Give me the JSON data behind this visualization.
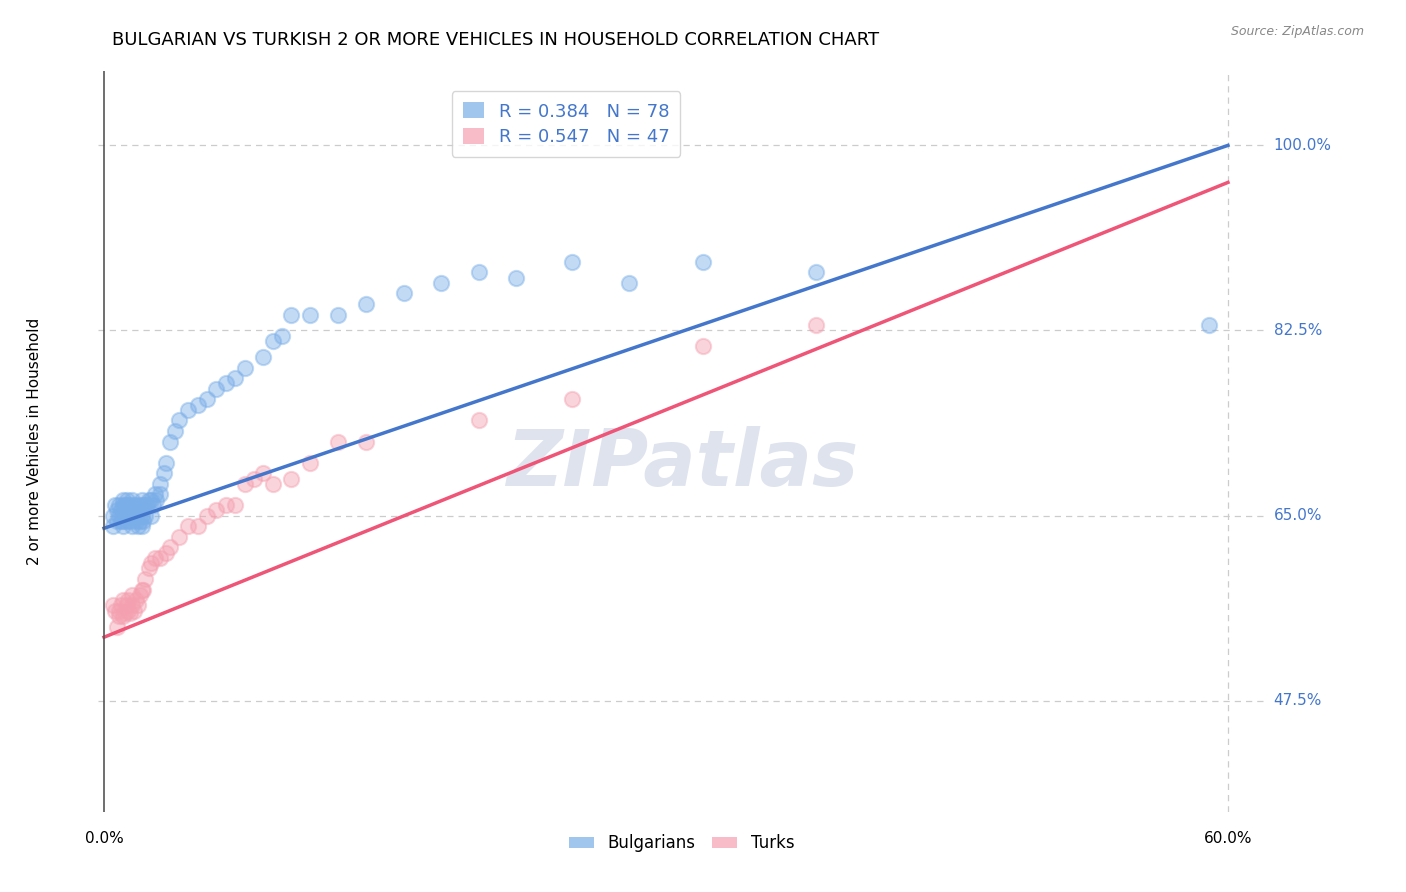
{
  "title": "BULGARIAN VS TURKISH 2 OR MORE VEHICLES IN HOUSEHOLD CORRELATION CHART",
  "source_text": "Source: ZipAtlas.com",
  "ylabel": "2 or more Vehicles in Household",
  "ytick_labels": [
    "47.5%",
    "65.0%",
    "82.5%",
    "100.0%"
  ],
  "ytick_values": [
    0.475,
    0.65,
    0.825,
    1.0
  ],
  "xtick_labels": [
    "0.0%",
    "60.0%"
  ],
  "xtick_values": [
    0.0,
    0.6
  ],
  "xlim": [
    -0.003,
    0.62
  ],
  "ylim": [
    0.37,
    1.07
  ],
  "legend_r_entries": [
    {
      "label": "R = 0.384   N = 78"
    },
    {
      "label": "R = 0.547   N = 47"
    }
  ],
  "blue_scatter_x": [
    0.005,
    0.005,
    0.006,
    0.007,
    0.007,
    0.008,
    0.008,
    0.009,
    0.009,
    0.01,
    0.01,
    0.01,
    0.01,
    0.011,
    0.011,
    0.012,
    0.012,
    0.012,
    0.013,
    0.013,
    0.013,
    0.014,
    0.014,
    0.015,
    0.015,
    0.015,
    0.016,
    0.016,
    0.017,
    0.017,
    0.018,
    0.018,
    0.019,
    0.019,
    0.02,
    0.02,
    0.02,
    0.021,
    0.021,
    0.022,
    0.022,
    0.023,
    0.024,
    0.025,
    0.025,
    0.026,
    0.027,
    0.028,
    0.03,
    0.03,
    0.032,
    0.033,
    0.035,
    0.038,
    0.04,
    0.045,
    0.05,
    0.055,
    0.06,
    0.065,
    0.07,
    0.075,
    0.085,
    0.09,
    0.095,
    0.1,
    0.11,
    0.125,
    0.14,
    0.16,
    0.18,
    0.2,
    0.22,
    0.25,
    0.28,
    0.32,
    0.38,
    0.59
  ],
  "blue_scatter_y": [
    0.64,
    0.65,
    0.66,
    0.655,
    0.645,
    0.65,
    0.66,
    0.645,
    0.655,
    0.64,
    0.645,
    0.66,
    0.665,
    0.65,
    0.66,
    0.645,
    0.655,
    0.665,
    0.65,
    0.655,
    0.66,
    0.645,
    0.66,
    0.64,
    0.65,
    0.665,
    0.65,
    0.66,
    0.645,
    0.66,
    0.64,
    0.655,
    0.645,
    0.66,
    0.64,
    0.65,
    0.665,
    0.645,
    0.66,
    0.65,
    0.66,
    0.66,
    0.665,
    0.65,
    0.665,
    0.66,
    0.67,
    0.665,
    0.67,
    0.68,
    0.69,
    0.7,
    0.72,
    0.73,
    0.74,
    0.75,
    0.755,
    0.76,
    0.77,
    0.775,
    0.78,
    0.79,
    0.8,
    0.815,
    0.82,
    0.84,
    0.84,
    0.84,
    0.85,
    0.86,
    0.87,
    0.88,
    0.875,
    0.89,
    0.87,
    0.89,
    0.88,
    0.83
  ],
  "pink_scatter_x": [
    0.005,
    0.006,
    0.007,
    0.008,
    0.008,
    0.009,
    0.01,
    0.01,
    0.011,
    0.012,
    0.013,
    0.013,
    0.014,
    0.015,
    0.015,
    0.016,
    0.017,
    0.018,
    0.019,
    0.02,
    0.021,
    0.022,
    0.024,
    0.025,
    0.027,
    0.03,
    0.033,
    0.035,
    0.04,
    0.045,
    0.05,
    0.055,
    0.06,
    0.065,
    0.07,
    0.075,
    0.08,
    0.085,
    0.09,
    0.1,
    0.11,
    0.125,
    0.14,
    0.2,
    0.25,
    0.32,
    0.38
  ],
  "pink_scatter_y": [
    0.565,
    0.56,
    0.545,
    0.555,
    0.56,
    0.565,
    0.555,
    0.57,
    0.558,
    0.565,
    0.56,
    0.57,
    0.558,
    0.565,
    0.575,
    0.56,
    0.57,
    0.565,
    0.575,
    0.58,
    0.58,
    0.59,
    0.6,
    0.605,
    0.61,
    0.61,
    0.615,
    0.62,
    0.63,
    0.64,
    0.64,
    0.65,
    0.655,
    0.66,
    0.66,
    0.68,
    0.685,
    0.69,
    0.68,
    0.685,
    0.7,
    0.72,
    0.72,
    0.74,
    0.76,
    0.81,
    0.83
  ],
  "blue_line": {
    "x0": 0.0,
    "y0": 0.638,
    "x1": 0.6,
    "y1": 1.0
  },
  "pink_line": {
    "x0": 0.0,
    "y0": 0.535,
    "x1": 0.6,
    "y1": 0.965
  },
  "watermark_text": "ZIPatlas",
  "bg_color": "#FFFFFF",
  "scatter_alpha": 0.45,
  "scatter_size": 120,
  "blue_scatter_color": "#7AAEE8",
  "pink_scatter_color": "#F4A0B0",
  "blue_line_color": "#4477CC",
  "pink_line_color": "#EE5577",
  "grid_color": "#CCCCCC",
  "title_fontsize": 13,
  "axis_label_fontsize": 11,
  "tick_fontsize": 11,
  "source_fontsize": 9,
  "legend_fontsize": 13
}
